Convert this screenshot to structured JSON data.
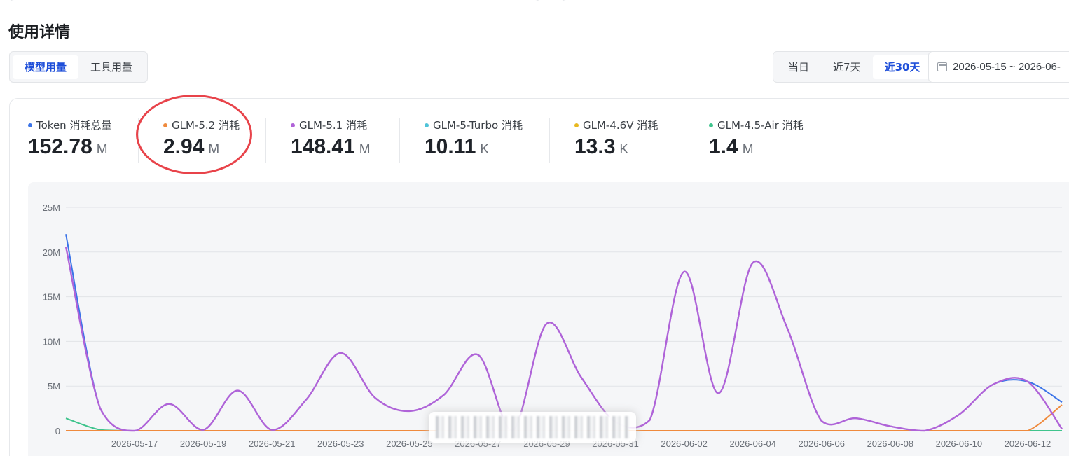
{
  "section_title": "使用详情",
  "usage_tabs": [
    {
      "label": "模型用量",
      "active": true
    },
    {
      "label": "工具用量",
      "active": false
    }
  ],
  "range_tabs": [
    {
      "label": "当日",
      "active": false
    },
    {
      "label": "近7天",
      "active": false
    },
    {
      "label": "近30天",
      "active": true
    }
  ],
  "date_range": "2026-05-15 ~ 2026-06-",
  "stats": [
    {
      "label": "Token 消耗总量",
      "value": "152.78",
      "unit": "M",
      "color": "#3b74e8"
    },
    {
      "label": "GLM-5.2 消耗",
      "value": "2.94",
      "unit": "M",
      "color": "#ef8a3d"
    },
    {
      "label": "GLM-5.1 消耗",
      "value": "148.41",
      "unit": "M",
      "color": "#b063d8"
    },
    {
      "label": "GLM-5-Turbo 消耗",
      "value": "10.11",
      "unit": "K",
      "color": "#4fc3d8"
    },
    {
      "label": "GLM-4.6V 消耗",
      "value": "13.3",
      "unit": "K",
      "color": "#e8b820"
    },
    {
      "label": "GLM-4.5-Air 消耗",
      "value": "1.4",
      "unit": "M",
      "color": "#3fc48d"
    }
  ],
  "chart_data": {
    "type": "line",
    "x": [
      "2026-05-15",
      "2026-05-16",
      "2026-05-17",
      "2026-05-18",
      "2026-05-19",
      "2026-05-20",
      "2026-05-21",
      "2026-05-22",
      "2026-05-23",
      "2026-05-24",
      "2026-05-25",
      "2026-05-26",
      "2026-05-27",
      "2026-05-28",
      "2026-05-29",
      "2026-05-30",
      "2026-05-31",
      "2026-06-01",
      "2026-06-02",
      "2026-06-03",
      "2026-06-04",
      "2026-06-05",
      "2026-06-06",
      "2026-06-07",
      "2026-06-08",
      "2026-06-09",
      "2026-06-10",
      "2026-06-11",
      "2026-06-12",
      "2026-06-13"
    ],
    "x_tick_labels": [
      "2026-05-17",
      "2026-05-19",
      "2026-05-21",
      "2026-05-23",
      "2026-05-25",
      "2026-05-27",
      "2026-05-29",
      "2026-05-31",
      "2026-06-02",
      "2026-06-04",
      "2026-06-06",
      "2026-06-08",
      "2026-06-10",
      "2026-06-12"
    ],
    "y_ticks": [
      0,
      5,
      10,
      15,
      20,
      25
    ],
    "y_tick_labels": [
      "0",
      "5M",
      "10M",
      "15M",
      "20M",
      "25M"
    ],
    "ylim": [
      0,
      25
    ],
    "y_unit": "M",
    "grid": true,
    "series": [
      {
        "name": "Token 消耗总量",
        "color": "#3b74e8",
        "values": [
          22.0,
          2.5,
          0.0,
          3.0,
          0.1,
          4.5,
          0.1,
          3.5,
          8.7,
          3.7,
          2.2,
          4.0,
          8.5,
          0.0,
          12.0,
          6.0,
          1.0,
          1.2,
          17.8,
          4.2,
          18.8,
          11.5,
          1.1,
          1.4,
          0.5,
          0.0,
          1.8,
          5.2,
          5.5,
          3.2
        ]
      },
      {
        "name": "GLM-5.2 消耗",
        "color": "#ef8a3d",
        "values": [
          0,
          0,
          0,
          0,
          0,
          0,
          0,
          0,
          0,
          0,
          0,
          0,
          0,
          0,
          0,
          0,
          0,
          0,
          0,
          0,
          0,
          0,
          0,
          0,
          0,
          0,
          0,
          0,
          0,
          2.9
        ]
      },
      {
        "name": "GLM-5.1 消耗",
        "color": "#b063d8",
        "values": [
          20.6,
          2.5,
          0.0,
          3.0,
          0.1,
          4.5,
          0.1,
          3.5,
          8.7,
          3.7,
          2.2,
          4.0,
          8.5,
          0.0,
          12.0,
          6.0,
          1.0,
          1.2,
          17.8,
          4.2,
          18.8,
          11.5,
          1.1,
          1.4,
          0.5,
          0.0,
          1.8,
          5.2,
          5.5,
          0.2
        ]
      },
      {
        "name": "GLM-5-Turbo 消耗",
        "color": "#4fc3d8",
        "values": [
          0,
          0,
          0,
          0,
          0,
          0,
          0,
          0,
          0,
          0,
          0,
          0,
          0,
          0,
          0,
          0,
          0,
          0,
          0,
          0,
          0,
          0,
          0,
          0,
          0,
          0,
          0,
          0,
          0,
          0
        ]
      },
      {
        "name": "GLM-4.6V 消耗",
        "color": "#e8b820",
        "values": [
          0,
          0,
          0,
          0,
          0,
          0,
          0,
          0,
          0,
          0,
          0,
          0,
          0,
          0,
          0,
          0,
          0,
          0,
          0,
          0,
          0,
          0,
          0,
          0,
          0,
          0,
          0,
          0,
          0,
          0
        ]
      },
      {
        "name": "GLM-4.5-Air 消耗",
        "color": "#3fc48d",
        "values": [
          1.4,
          0.1,
          0,
          0,
          0,
          0,
          0,
          0,
          0,
          0,
          0,
          0,
          0,
          0,
          0,
          0,
          0,
          0,
          0,
          0,
          0,
          0,
          0,
          0,
          0,
          0,
          0,
          0,
          0,
          0
        ]
      }
    ]
  }
}
